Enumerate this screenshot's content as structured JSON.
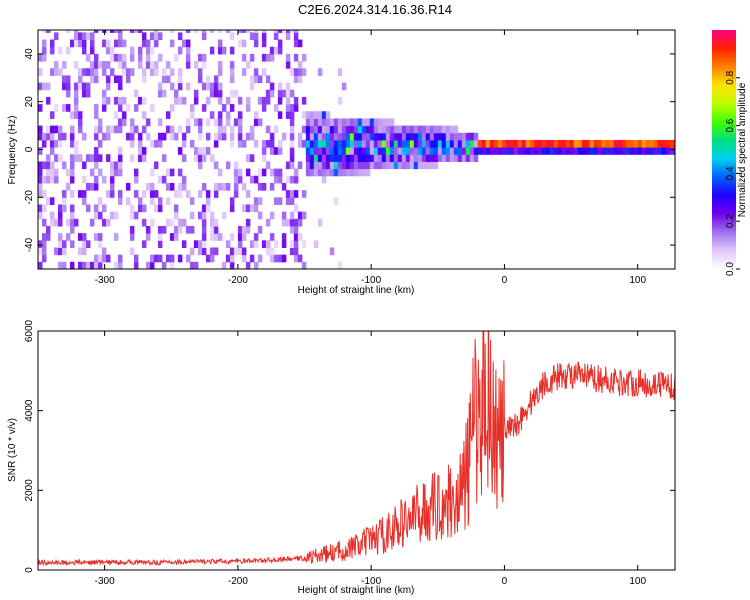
{
  "title": "C2E6.2024.314.16.36.R14",
  "colors": {
    "snr_line": "#e8302a",
    "axis": "#000000",
    "background": "#ffffff"
  },
  "chart_data": [
    {
      "type": "heatmap",
      "xlabel": "Height of straight line (km)",
      "ylabel": "Frequency (Hz)",
      "xlim": [
        -350,
        128
      ],
      "ylim": [
        -50,
        50
      ],
      "xticks": [
        -300,
        -200,
        -100,
        0,
        100
      ],
      "yticks": [
        -40,
        -20,
        0,
        20,
        40
      ],
      "colorbar": {
        "label": "Normalized spectral amplitude",
        "ticks": [
          0.0,
          0.2,
          0.4,
          0.6,
          0.8
        ],
        "range": [
          0,
          1
        ],
        "colormap": [
          "#ffffff",
          "#e0c8f8",
          "#a070f0",
          "#7000f0",
          "#2000ff",
          "#0060ff",
          "#00d0f0",
          "#00e080",
          "#40ff00",
          "#c0ff00",
          "#ffe000",
          "#ff8000",
          "#ff2000",
          "#ff0080"
        ]
      },
      "regions": [
        {
          "x_from": -350,
          "x_to": -150,
          "description_level": 0.12,
          "freq_spread": 50
        },
        {
          "x_from": -150,
          "x_to": -20,
          "description_level": 0.3,
          "freq_spread": 12
        },
        {
          "x_from": -20,
          "x_to": 128,
          "description_level": 0.9,
          "freq_spread": 2
        }
      ]
    },
    {
      "type": "line",
      "xlabel": "Height of straight line (km)",
      "ylabel": "SNR (10 * v/v)",
      "xlim": [
        -350,
        128
      ],
      "ylim": [
        0,
        6000
      ],
      "xticks": [
        -300,
        -200,
        -100,
        0,
        100
      ],
      "yticks": [
        0,
        2000,
        4000,
        6000
      ],
      "series": [
        {
          "x": [
            -350,
            -320,
            -290,
            -260,
            -230,
            -200,
            -170,
            -150,
            -130,
            -110,
            -90,
            -75,
            -60,
            -45,
            -35,
            -28,
            -22,
            -16,
            -12,
            -8,
            -4,
            0,
            10,
            20,
            30,
            40,
            50,
            60,
            70,
            80,
            90,
            100,
            110,
            120,
            128
          ],
          "y": [
            180,
            190,
            200,
            190,
            210,
            220,
            260,
            300,
            420,
            600,
            900,
            1200,
            1500,
            1700,
            1800,
            2400,
            3800,
            4500,
            5200,
            3500,
            3200,
            3400,
            3700,
            4200,
            4700,
            4850,
            4900,
            4850,
            4800,
            4750,
            4700,
            4700,
            4650,
            4700,
            4600
          ]
        }
      ]
    }
  ]
}
